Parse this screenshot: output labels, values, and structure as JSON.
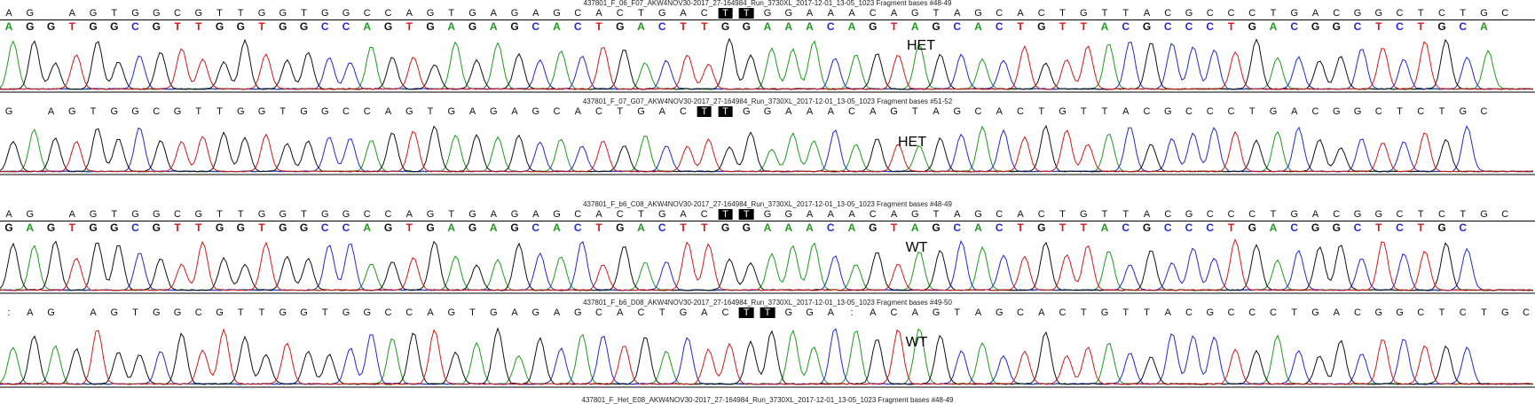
{
  "base_colors": {
    "A": "#1f9a1f",
    "C": "#2727cf",
    "G": "#111111",
    "T": "#d11a1a"
  },
  "panels": [
    {
      "title": "437801_F_06_F07_AKW4NOV30-2017_27-164984_Run_3730XL_2017-12-01_13-05_1023 Fragment bases #48-49",
      "reference": "AG AGTGGCGTTGGTGGCCAGTGAGAGCACTGACTTGGAAACAGTAGCACTGTTACGCCCTGACGGCTCTGC",
      "calls": "AGGTGGCGTTGGTGGCCAGTGAGAGCACTGACTTGGAAACAGTAGCACTGTTACGCCCTGACGGCTCTGCA",
      "highlight": "TT",
      "genotype": "HET"
    },
    {
      "title": "437801_F_07_G07_AKW4NOV30-2017_27-164984_Run_3730XL_2017-12-01_13-05_1023 Fragment bases #51-52",
      "reference": "G AGTGGCGTTGGTGGCCAGTGAGAGCACTGACTTGGAAACAGTAGCACTGTTACGCCCTGACGGCTCTGC",
      "calls": "",
      "highlight": "TT",
      "genotype": "HET"
    },
    {
      "title": "437801_F_b6_C08_AKW4NOV30-2017_27-164984_Run_3730XL_2017-12-01_13-05_1023 Fragment bases #48-49",
      "reference": "AG AGTGGCGTTGGTGGCCAGTGAGAGCACTGACTTGGAAACAGTAGCACTGTTACGCCCTGACGGCTCTGC",
      "calls": "GAGTGGCGTTGGTGGCCAGTGAGAGCACTGACTTGGAAACAGTAGCACTGTTACGCCCTGACGGCTCTGC",
      "highlight": "TT",
      "genotype": "WT"
    },
    {
      "title": "437801_F_b6_D08_AKW4NOV30-2017_27-164984_Run_3730XL_2017-12-01_13-05_1023 Fragment bases #49-50",
      "reference": ":AG AGTGGCGTTGGTGGCCAGTGAGAGCACTGACTTGGA:ACAGTAGCACTGTTACGCCCTGACGGCTCTGC",
      "calls": "",
      "highlight": "TT",
      "genotype": "WT"
    }
  ],
  "bottom_title": "437801_F_Het_E08_AKW4NOV30-2017_27-164984_Run_3730XL_2017-12-01_13-05_1023 Fragment bases #48-49"
}
